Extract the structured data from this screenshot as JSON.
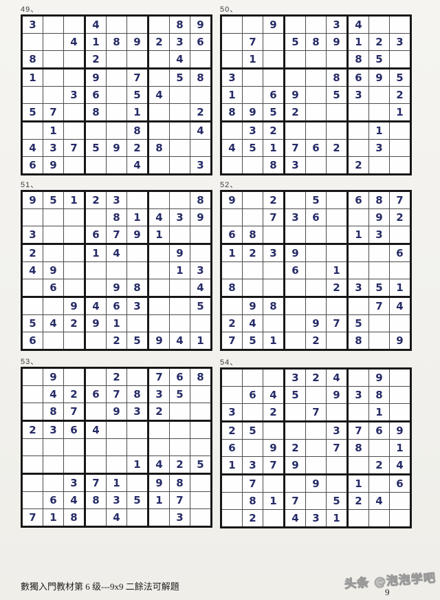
{
  "page": {
    "footer_text": "數獨入門教材第 6 级---9x9 二餘法可解題",
    "page_number": "9",
    "watermark": "头条 @泡泡学吧"
  },
  "colors": {
    "number": "#252a66",
    "grid_line": "#161616",
    "page_background": "#f2f1ed"
  },
  "puzzles": [
    {
      "label": "49、",
      "grid": [
        [
          "3",
          "",
          "",
          "4",
          "",
          "",
          "",
          "8",
          "9"
        ],
        [
          "",
          "",
          "4",
          "1",
          "8",
          "9",
          "2",
          "3",
          "6"
        ],
        [
          "8",
          "",
          "",
          "2",
          "",
          "",
          "",
          "4",
          ""
        ],
        [
          "1",
          "",
          "",
          "9",
          "",
          "7",
          "",
          "5",
          "8"
        ],
        [
          "",
          "",
          "3",
          "6",
          "",
          "5",
          "4",
          "",
          ""
        ],
        [
          "5",
          "7",
          "",
          "8",
          "",
          "1",
          "",
          "",
          "2"
        ],
        [
          "",
          "1",
          "",
          "",
          "",
          "8",
          "",
          "",
          "4"
        ],
        [
          "4",
          "3",
          "7",
          "5",
          "9",
          "2",
          "8",
          "",
          ""
        ],
        [
          "6",
          "9",
          "",
          "",
          "",
          "4",
          "",
          "",
          "3"
        ]
      ]
    },
    {
      "label": "50、",
      "grid": [
        [
          "",
          "",
          "9",
          "",
          "",
          "3",
          "4",
          "",
          ""
        ],
        [
          "",
          "7",
          "",
          "5",
          "8",
          "9",
          "1",
          "2",
          "3"
        ],
        [
          "",
          "1",
          "",
          "",
          "",
          "",
          "8",
          "5",
          ""
        ],
        [
          "3",
          "",
          "",
          "",
          "",
          "8",
          "6",
          "9",
          "5"
        ],
        [
          "1",
          "",
          "6",
          "9",
          "",
          "5",
          "3",
          "",
          "2"
        ],
        [
          "8",
          "9",
          "5",
          "2",
          "",
          "",
          "",
          "",
          "1"
        ],
        [
          "",
          "3",
          "2",
          "",
          "",
          "",
          "",
          "1",
          ""
        ],
        [
          "4",
          "5",
          "1",
          "7",
          "6",
          "2",
          "",
          "3",
          ""
        ],
        [
          "",
          "",
          "8",
          "3",
          "",
          "",
          "2",
          "",
          ""
        ]
      ]
    },
    {
      "label": "51、",
      "grid": [
        [
          "9",
          "5",
          "1",
          "2",
          "3",
          "",
          "",
          "",
          "8"
        ],
        [
          "",
          "",
          "",
          "",
          "8",
          "1",
          "4",
          "3",
          "9"
        ],
        [
          "3",
          "",
          "",
          "6",
          "7",
          "9",
          "1",
          "",
          ""
        ],
        [
          "2",
          "",
          "",
          "1",
          "4",
          "",
          "",
          "9",
          ""
        ],
        [
          "4",
          "9",
          "",
          "",
          "",
          "",
          "",
          "1",
          "3"
        ],
        [
          "",
          "6",
          "",
          "",
          "9",
          "8",
          "",
          "",
          "4"
        ],
        [
          "",
          "",
          "9",
          "4",
          "6",
          "3",
          "",
          "",
          "5"
        ],
        [
          "5",
          "4",
          "2",
          "9",
          "1",
          "",
          "",
          "",
          ""
        ],
        [
          "6",
          "",
          "",
          "",
          "2",
          "5",
          "9",
          "4",
          "1"
        ]
      ]
    },
    {
      "label": "52、",
      "grid": [
        [
          "9",
          "",
          "2",
          "",
          "5",
          "",
          "6",
          "8",
          "7"
        ],
        [
          "",
          "",
          "7",
          "3",
          "6",
          "",
          "",
          "9",
          "2"
        ],
        [
          "6",
          "8",
          "",
          "",
          "",
          "",
          "1",
          "3",
          ""
        ],
        [
          "1",
          "2",
          "3",
          "9",
          "",
          "",
          "",
          "",
          "6"
        ],
        [
          "",
          "",
          "",
          "6",
          "",
          "1",
          "",
          "",
          ""
        ],
        [
          "8",
          "",
          "",
          "",
          "",
          "2",
          "3",
          "5",
          "1"
        ],
        [
          "",
          "9",
          "8",
          "",
          "",
          "",
          "",
          "7",
          "4"
        ],
        [
          "2",
          "4",
          "",
          "",
          "9",
          "7",
          "5",
          "",
          ""
        ],
        [
          "7",
          "5",
          "1",
          "",
          "2",
          "",
          "8",
          "",
          "9"
        ]
      ]
    },
    {
      "label": "53、",
      "grid": [
        [
          "",
          "9",
          "",
          "",
          "2",
          "",
          "7",
          "6",
          "8"
        ],
        [
          "",
          "4",
          "2",
          "6",
          "7",
          "8",
          "3",
          "5",
          ""
        ],
        [
          "",
          "8",
          "7",
          "",
          "9",
          "3",
          "2",
          "",
          ""
        ],
        [
          "2",
          "3",
          "6",
          "4",
          "",
          "",
          "",
          "",
          ""
        ],
        [
          "",
          "",
          "",
          "",
          "",
          "",
          "",
          "",
          ""
        ],
        [
          "",
          "",
          "",
          "",
          "",
          "1",
          "4",
          "2",
          "5"
        ],
        [
          "",
          "",
          "3",
          "7",
          "1",
          "",
          "9",
          "8",
          ""
        ],
        [
          "",
          "6",
          "4",
          "8",
          "3",
          "5",
          "1",
          "7",
          ""
        ],
        [
          "7",
          "1",
          "8",
          "",
          "4",
          "",
          "",
          "3",
          ""
        ]
      ]
    },
    {
      "label": "54、",
      "grid": [
        [
          "",
          "",
          "",
          "3",
          "2",
          "4",
          "",
          "9",
          ""
        ],
        [
          "",
          "6",
          "4",
          "5",
          "",
          "9",
          "3",
          "8",
          ""
        ],
        [
          "3",
          "",
          "2",
          "",
          "7",
          "",
          "",
          "1",
          ""
        ],
        [
          "2",
          "5",
          "",
          "",
          "",
          "3",
          "7",
          "6",
          "9"
        ],
        [
          "6",
          "",
          "9",
          "2",
          "",
          "7",
          "8",
          "",
          "1"
        ],
        [
          "1",
          "3",
          "7",
          "9",
          "",
          "",
          "",
          "2",
          "4"
        ],
        [
          "",
          "7",
          "",
          "",
          "9",
          "",
          "1",
          "",
          "6"
        ],
        [
          "",
          "8",
          "1",
          "7",
          "",
          "5",
          "2",
          "4",
          ""
        ],
        [
          "",
          "2",
          "",
          "4",
          "3",
          "1",
          "",
          "",
          ""
        ]
      ]
    }
  ]
}
